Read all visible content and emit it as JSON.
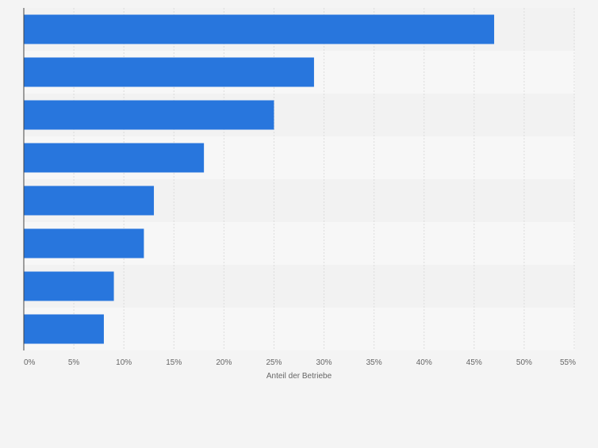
{
  "chart_data": {
    "type": "bar",
    "orientation": "horizontal",
    "categories": [
      "",
      "",
      "",
      "",
      "",
      "",
      "",
      ""
    ],
    "values": [
      47,
      29,
      25,
      18,
      13,
      12,
      9,
      8
    ],
    "xlabel": "Anteil der Betriebe",
    "ylabel": "",
    "xlim": [
      0,
      55
    ],
    "xticks": [
      "0%",
      "5%",
      "10%",
      "15%",
      "20%",
      "25%",
      "30%",
      "35%",
      "40%",
      "45%",
      "50%",
      "55%"
    ],
    "grid": true,
    "legend": "none",
    "colors": {
      "bar": "#2876dd",
      "background": "#f4f4f4",
      "band_light": "#f7f7f7",
      "band_dark": "#f2f2f2",
      "grid": "#dcdcdc",
      "axis": "#444444",
      "tick_text": "#666666"
    }
  }
}
